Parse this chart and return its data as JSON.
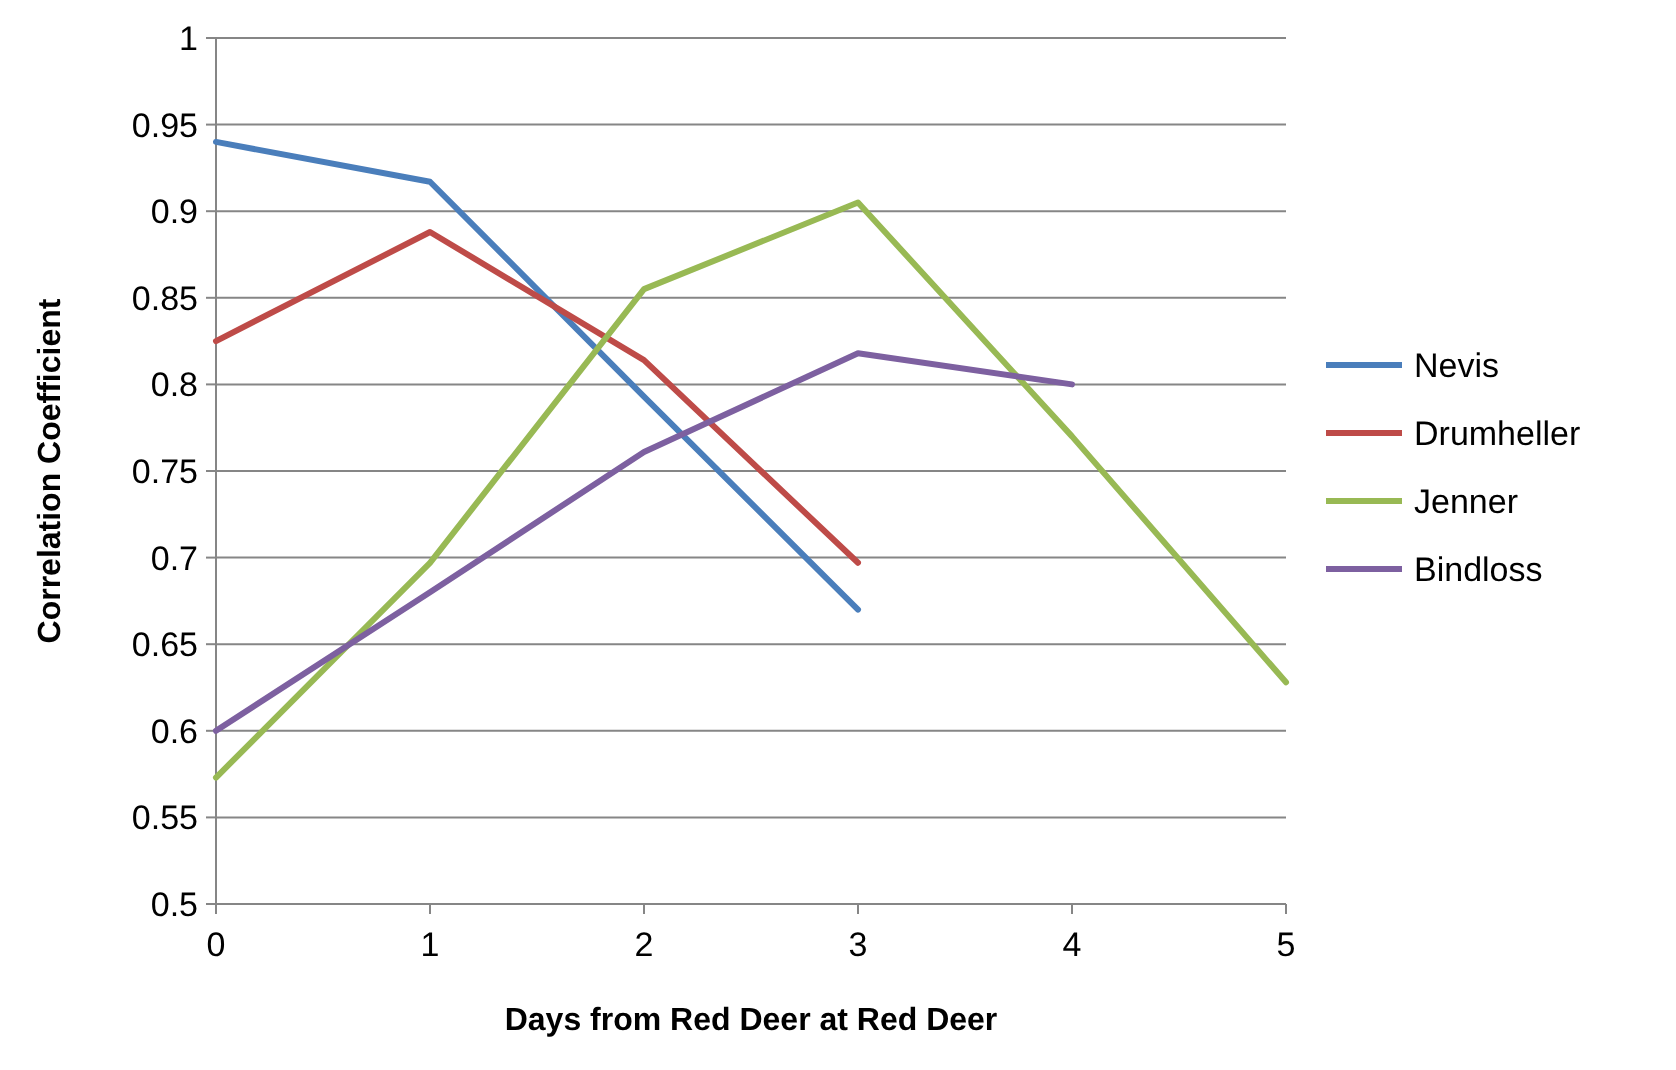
{
  "chart_data": {
    "type": "line",
    "xlabel": "Days from Red Deer at Red Deer",
    "ylabel": "Correlation Coefficient",
    "x": [
      0,
      1,
      2,
      3,
      4,
      5
    ],
    "xlim": [
      0,
      5
    ],
    "xticks": [
      0,
      1,
      2,
      3,
      4,
      5
    ],
    "ylim": [
      0.5,
      1
    ],
    "yticks": [
      0.5,
      0.55,
      0.6,
      0.65,
      0.7,
      0.75,
      0.8,
      0.85,
      0.9,
      0.95,
      1
    ],
    "grid": "y",
    "legend": "right",
    "marker": "none",
    "line_style": "solid",
    "series": [
      {
        "name": "Nevis",
        "color": "#4a7ebb",
        "values": [
          0.94,
          0.917,
          0.793,
          0.67,
          null,
          null
        ]
      },
      {
        "name": "Drumheller",
        "color": "#be4b48",
        "values": [
          0.825,
          0.888,
          0.814,
          0.697,
          null,
          null
        ]
      },
      {
        "name": "Jenner",
        "color": "#98b954",
        "values": [
          0.573,
          0.697,
          0.855,
          0.905,
          0.77,
          0.628
        ]
      },
      {
        "name": "Bindloss",
        "color": "#7d60a0",
        "values": [
          0.6,
          0.68,
          0.761,
          0.818,
          0.8,
          null
        ]
      }
    ]
  }
}
